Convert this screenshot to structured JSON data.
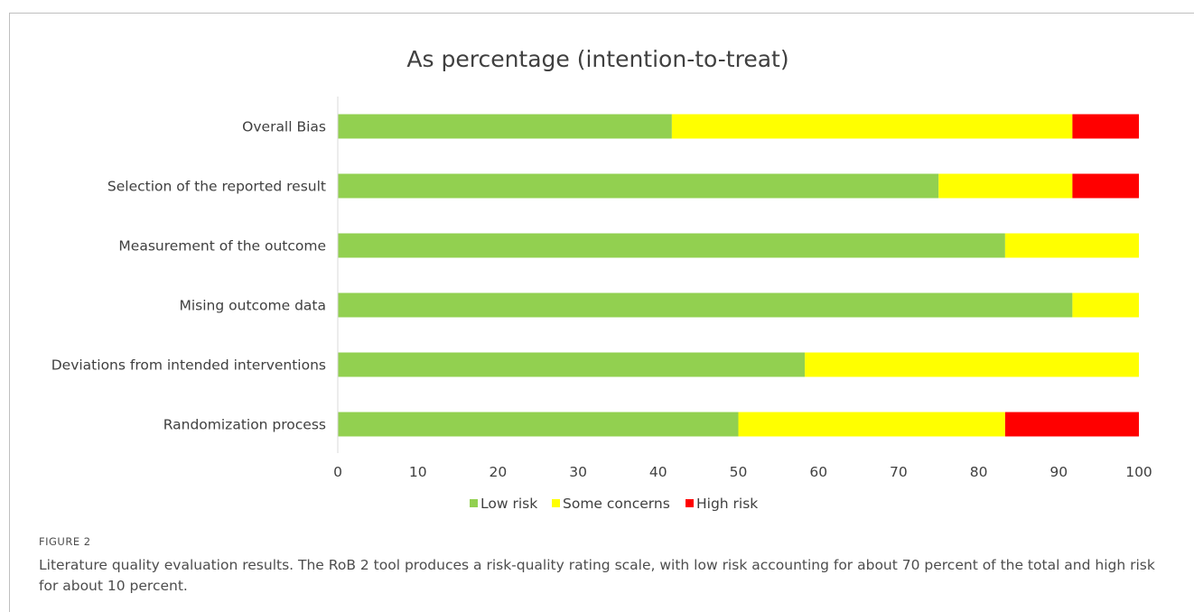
{
  "chart_data": {
    "type": "bar",
    "orientation": "horizontal",
    "stacked": true,
    "title": "As percentage (intention-to-treat)",
    "categories": [
      "Overall Bias",
      "Selection of the reported result",
      "Measurement of the outcome",
      "Mising outcome data",
      "Deviations from intended interventions",
      "Randomization process"
    ],
    "series": [
      {
        "name": "Low risk",
        "color": "#92d050",
        "values": [
          41.7,
          75.0,
          83.3,
          91.7,
          58.3,
          50.0
        ]
      },
      {
        "name": "Some concerns",
        "color": "#ffff00",
        "values": [
          50.0,
          16.7,
          16.7,
          8.3,
          41.7,
          33.3
        ]
      },
      {
        "name": "High risk",
        "color": "#ff0000",
        "values": [
          8.3,
          8.3,
          0,
          0,
          0,
          16.7
        ]
      }
    ],
    "xlim": [
      0,
      100
    ],
    "xticks": [
      "0",
      "10",
      "20",
      "30",
      "40",
      "50",
      "60",
      "70",
      "80",
      "90",
      "100"
    ],
    "grid": false,
    "legend": "bottom"
  },
  "figure": {
    "label": "FIGURE 2",
    "caption": "Literature quality evaluation results. The RoB 2 tool produces a risk-quality rating scale, with low risk accounting for about 70 percent of the total and high risk for about 10 percent."
  }
}
